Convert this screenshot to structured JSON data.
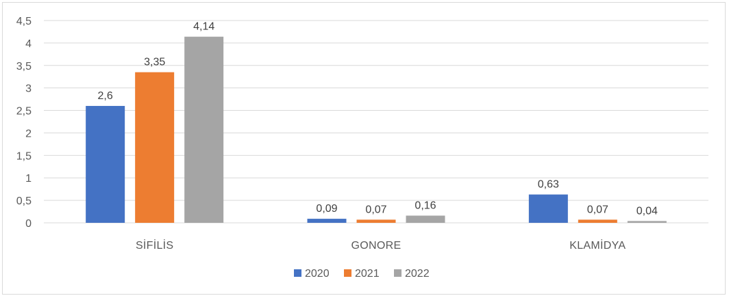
{
  "chart_data": {
    "type": "bar",
    "categories": [
      "SİFİLİS",
      "GONORE",
      "KLAMİDYA"
    ],
    "series": [
      {
        "name": "2020",
        "color": "#4472c4",
        "values": [
          2.6,
          0.09,
          0.63
        ],
        "labels": [
          "2,6",
          "0,09",
          "0,63"
        ]
      },
      {
        "name": "2021",
        "color": "#ed7d31",
        "values": [
          3.35,
          0.07,
          0.07
        ],
        "labels": [
          "3,35",
          "0,07",
          "0,07"
        ]
      },
      {
        "name": "2022",
        "color": "#a5a5a5",
        "values": [
          4.14,
          0.16,
          0.04
        ],
        "labels": [
          "4,14",
          "0,16",
          "0,04"
        ]
      }
    ],
    "yticks": [
      0,
      0.5,
      1,
      1.5,
      2,
      2.5,
      3,
      3.5,
      4,
      4.5
    ],
    "ytick_labels": [
      "0",
      "0,5",
      "1",
      "1,5",
      "2",
      "2,5",
      "3",
      "3,5",
      "4",
      "4,5"
    ],
    "ylim": [
      0,
      4.5
    ],
    "grid": true,
    "legend_position": "bottom",
    "title": "",
    "xlabel": "",
    "ylabel": ""
  }
}
